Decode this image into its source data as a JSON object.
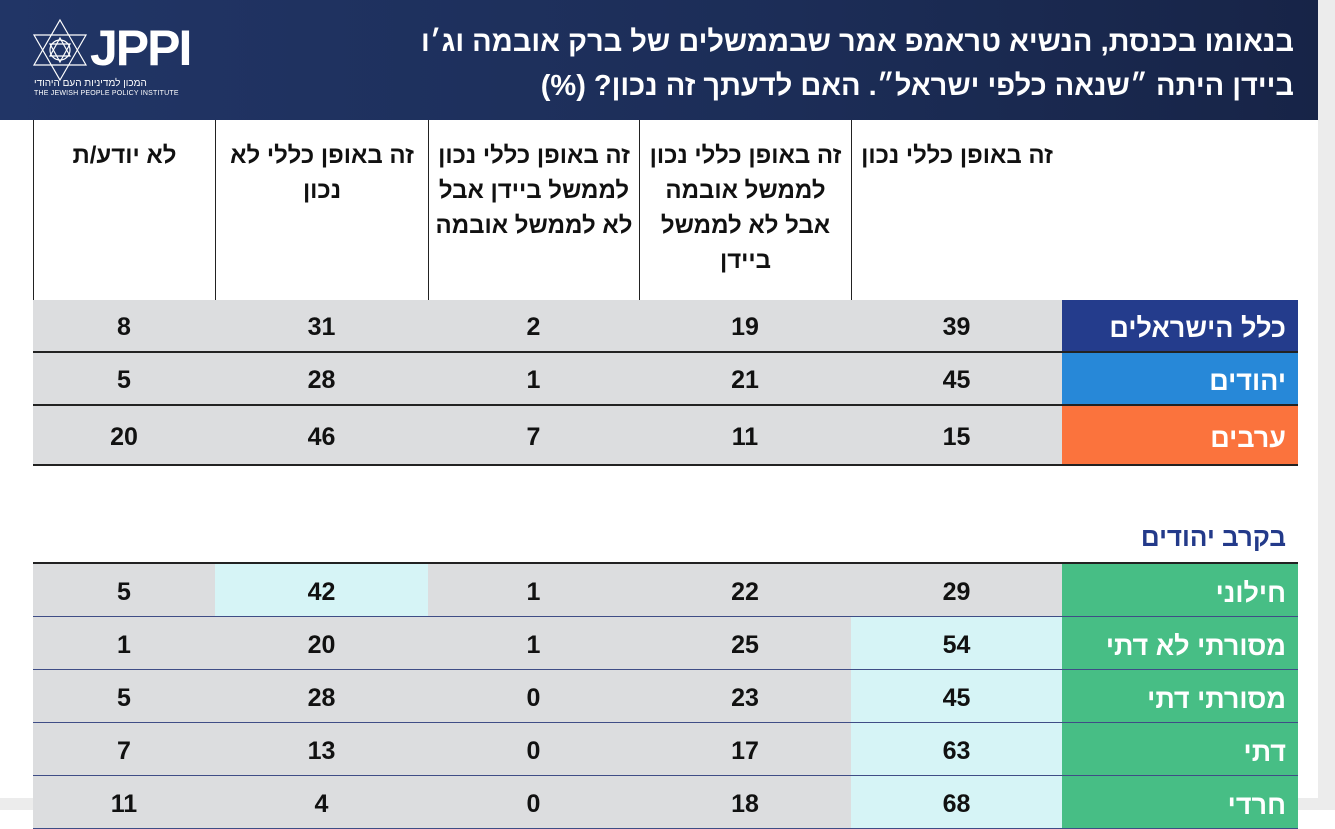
{
  "logo": {
    "name": "JPPI",
    "hebrew": "המכון למדיניות העם היהודי",
    "english": "THE JEWISH PEOPLE POLICY INSTITUTE"
  },
  "title": "בנאומו בכנסת, הנשיא טראמפ אמר שבממשלים של ברק אובמה וג׳ו ביידן היתה ״שנאה כלפי ישראל״. האם לדעתך זה נכון? (%)",
  "columns": [
    "זה באופן כללי נכון",
    "זה באופן כללי נכון לממשל אובמה אבל לא לממשל ביידן",
    "זה באופן כללי נכון לממשל ביידן אבל לא לממשל אובמה",
    "זה באופן כללי לא נכון",
    "לא יודע/ת"
  ],
  "colors": {
    "header": "#1c2d57",
    "all": "#243c8c",
    "jews": "#2788d8",
    "arabs": "#fb733d",
    "subgroups": "#47be85",
    "highlight": "#d6f4f6",
    "cell": "#dcdddf"
  },
  "groups": [
    {
      "label": "כלל הישראלים",
      "color": "#243c8c",
      "values": [
        39,
        19,
        2,
        31,
        8
      ]
    },
    {
      "label": "יהודים",
      "color": "#2788d8",
      "values": [
        45,
        21,
        1,
        28,
        5
      ]
    },
    {
      "label": "ערבים",
      "color": "#fb733d",
      "values": [
        15,
        11,
        7,
        46,
        20
      ]
    }
  ],
  "subheading": "בקרב יהודים",
  "subgroups": [
    {
      "label": "חילוני",
      "values": [
        29,
        22,
        1,
        42,
        5
      ],
      "highlight": [
        3
      ]
    },
    {
      "label": "מסורתי לא דתי",
      "values": [
        54,
        25,
        1,
        20,
        1
      ],
      "highlight": [
        0
      ]
    },
    {
      "label": "מסורתי דתי",
      "values": [
        45,
        23,
        0,
        28,
        5
      ],
      "highlight": [
        0
      ]
    },
    {
      "label": "דתי",
      "values": [
        63,
        17,
        0,
        13,
        7
      ],
      "highlight": [
        0
      ]
    },
    {
      "label": "חרדי",
      "values": [
        68,
        18,
        0,
        4,
        11
      ],
      "highlight": [
        0
      ]
    }
  ]
}
